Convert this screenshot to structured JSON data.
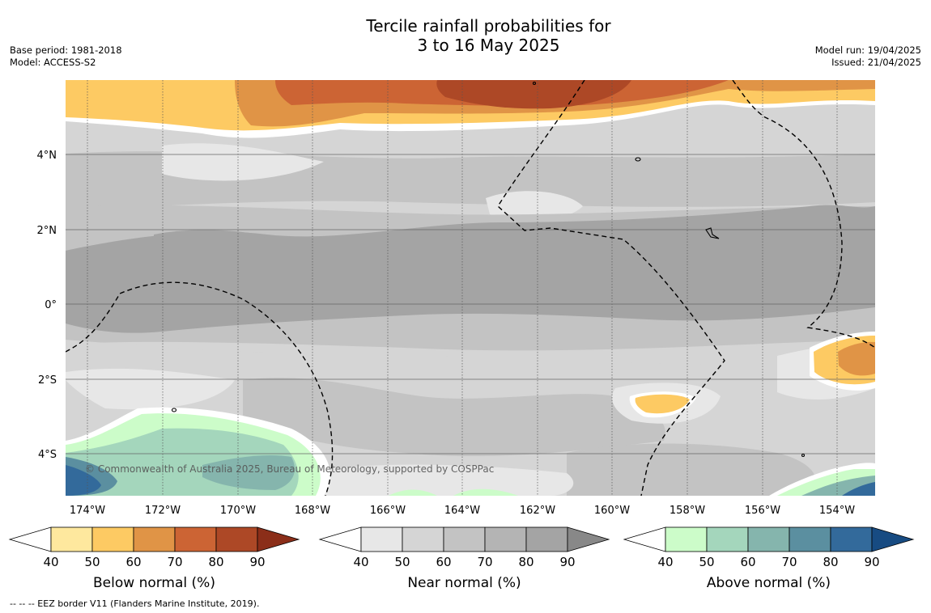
{
  "title_line1": "Tercile rainfall probabilities for",
  "title_line2": "3 to 16 May 2025",
  "base_period": "Base period: 1981-2018",
  "model": "Model: ACCESS-S2",
  "model_run": "Model run: 19/04/2025",
  "issued": "Issued: 21/04/2025",
  "copyright": "© Commonwealth of Australia 2025, Bureau of Meteorology, supported by COSPPac",
  "footnote": "--  --  -- EEZ border V11 (Flanders Marine Institute, 2019).",
  "lat_labels": [
    "4°N",
    "2°N",
    "0°",
    "2°S",
    "4°S"
  ],
  "lon_labels": [
    "174°W",
    "172°W",
    "170°W",
    "168°W",
    "166°W",
    "164°W",
    "162°W",
    "160°W",
    "158°W",
    "156°W",
    "154°W"
  ],
  "colorbars": [
    {
      "title": "Below normal (%)",
      "ticks": [
        "40",
        "50",
        "60",
        "70",
        "80",
        "90"
      ],
      "colors": [
        "#ffffff",
        "#fee89e",
        "#fdca63",
        "#e09446",
        "#cc6434",
        "#ad4826",
        "#8b2e19"
      ]
    },
    {
      "title": "Near normal (%)",
      "ticks": [
        "40",
        "50",
        "60",
        "70",
        "80",
        "90"
      ],
      "colors": [
        "#ffffff",
        "#e7e7e7",
        "#d5d5d5",
        "#c3c3c3",
        "#b4b4b4",
        "#a4a4a4",
        "#888888"
      ]
    },
    {
      "title": "Above normal (%)",
      "ticks": [
        "40",
        "50",
        "60",
        "70",
        "80",
        "90"
      ],
      "colors": [
        "#ffffff",
        "#ccfcc9",
        "#a4d6bc",
        "#85b5ad",
        "#5b8fa0",
        "#336a9b",
        "#174b82"
      ]
    }
  ]
}
